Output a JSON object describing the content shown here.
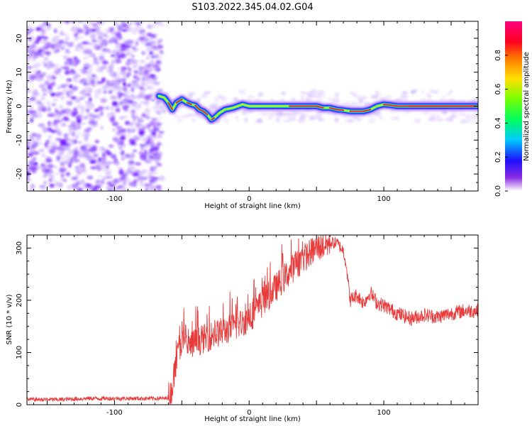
{
  "figure": {
    "title": "S103.2022.345.04.02.G04"
  },
  "chart_data": [
    {
      "type": "heatmap",
      "xlabel": "Height of straight line (km)",
      "ylabel": "Frequency (Hz)",
      "xlim": [
        -165,
        170
      ],
      "ylim": [
        -25,
        25
      ],
      "xticks": [
        -100,
        0,
        100
      ],
      "yticks": [
        -20,
        -10,
        0,
        10,
        20
      ],
      "grid": false,
      "noise_region_x": [
        -165,
        -67
      ],
      "signal_ridge": {
        "x": [
          -67,
          -63,
          -60,
          -57,
          -54,
          -50,
          -46,
          -43,
          -40,
          -37,
          -34,
          -31,
          -28,
          -26,
          -22,
          -18,
          -12,
          -5,
          0,
          10,
          20,
          30,
          40,
          50,
          55,
          60,
          65,
          70,
          75,
          80,
          85,
          90,
          95,
          100,
          105,
          110,
          120,
          130,
          150,
          170
        ],
        "freq": [
          3,
          2.5,
          1,
          -1,
          1,
          2,
          1,
          0.5,
          0.2,
          -1,
          -1.5,
          -2.5,
          -4,
          -3.5,
          -2,
          -1,
          -0.5,
          0.5,
          0,
          0,
          0,
          0,
          0,
          0,
          -0.5,
          -0.5,
          -1,
          -1.2,
          -1.5,
          -1.5,
          -1.5,
          -1,
          0,
          0.5,
          0.3,
          0,
          0,
          0,
          0,
          0
        ]
      },
      "colorbar": {
        "label": "Normalized spectral amplitude",
        "range": [
          0.0,
          1.0
        ],
        "ticks": [
          0.0,
          0.2,
          0.4,
          0.6,
          0.8
        ],
        "tick_labels": [
          "0.0",
          "0.2",
          "0.4",
          "0.6",
          "0.8"
        ],
        "colormap": "rainbow (white-purple-blue-cyan-green-yellow-red-magenta)"
      }
    },
    {
      "type": "line",
      "xlabel": "Height of straight line (km)",
      "ylabel": "SNR (10 * v/v)",
      "xlim": [
        -165,
        170
      ],
      "ylim": [
        0,
        325
      ],
      "xticks": [
        -100,
        0,
        100
      ],
      "yticks": [
        0,
        100,
        200,
        300
      ],
      "grid": false,
      "color": "#e83a3a",
      "series": [
        {
          "x": [
            -165,
            -140,
            -120,
            -100,
            -80,
            -70,
            -62,
            -58,
            -55,
            -52,
            -50,
            -45,
            -40,
            -30,
            -20,
            -10,
            0,
            10,
            20,
            30,
            40,
            50,
            60,
            65,
            70,
            72,
            75,
            80,
            85,
            90,
            95,
            100,
            110,
            120,
            130,
            140,
            150,
            160,
            170
          ],
          "y": [
            10,
            10,
            12,
            12,
            12,
            12,
            12,
            20,
            70,
            110,
            120,
            110,
            120,
            130,
            140,
            150,
            165,
            195,
            225,
            255,
            280,
            300,
            310,
            310,
            295,
            270,
            200,
            210,
            195,
            215,
            195,
            190,
            175,
            165,
            172,
            168,
            175,
            180,
            180
          ]
        }
      ]
    }
  ]
}
